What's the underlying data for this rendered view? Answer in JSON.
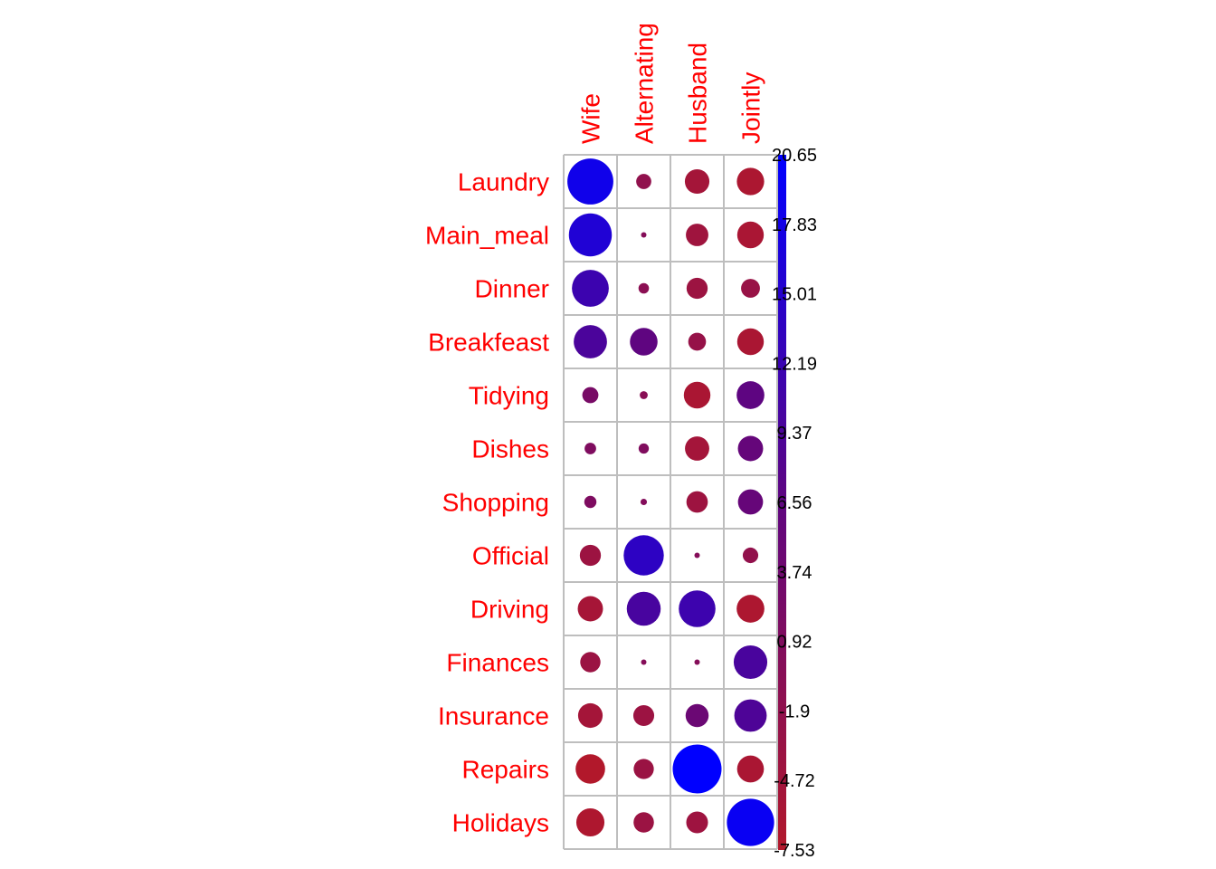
{
  "chart_data": {
    "type": "heatmap",
    "rows": [
      "Laundry",
      "Main_meal",
      "Dinner",
      "Breakfeast",
      "Tidying",
      "Dishes",
      "Shopping",
      "Official",
      "Driving",
      "Finances",
      "Insurance",
      "Repairs",
      "Holidays"
    ],
    "columns": [
      "Wife",
      "Alternating",
      "Husband",
      "Jointly"
    ],
    "values": [
      [
        18.27,
        -1.97,
        -5.21,
        -6.48
      ],
      [
        15.95,
        0.06,
        -4.38,
        -6.11
      ],
      [
        11.77,
        -0.95,
        -3.86,
        -3.08
      ],
      [
        9.55,
        6.6,
        -2.73,
        -6.13
      ],
      [
        2.25,
        -0.55,
        -6.13,
        6.65
      ],
      [
        1.15,
        0.91,
        -5.11,
        5.53
      ],
      [
        1.28,
        0.36,
        -3.97,
        5.45
      ],
      [
        -3.85,
        13.97,
        0.12,
        -2.08
      ],
      [
        -5.53,
        9.96,
        11.67,
        -6.66
      ],
      [
        -3.56,
        0.06,
        0.07,
        9.76
      ],
      [
        -5.23,
        -3.78,
        4.6,
        9.11
      ],
      [
        -7.53,
        -3.52,
        20.65,
        -6.22
      ],
      [
        -6.85,
        -3.6,
        -4.1,
        19.36
      ]
    ],
    "colorbar": {
      "min": -7.53,
      "max": 20.65,
      "ticks": [
        "20.65",
        "17.83",
        "15.01",
        "12.19",
        "9.37",
        "6.56",
        "3.74",
        "0.92",
        "-1.9",
        "-4.72",
        "-7.53"
      ],
      "low_color": "#b2182b",
      "mid_color": "#5f0580",
      "high_color": "#0000ff"
    },
    "label_color": "#ff0000",
    "grid_color": "#bebebe",
    "marker": "circle",
    "size_encodes": "absolute value"
  }
}
